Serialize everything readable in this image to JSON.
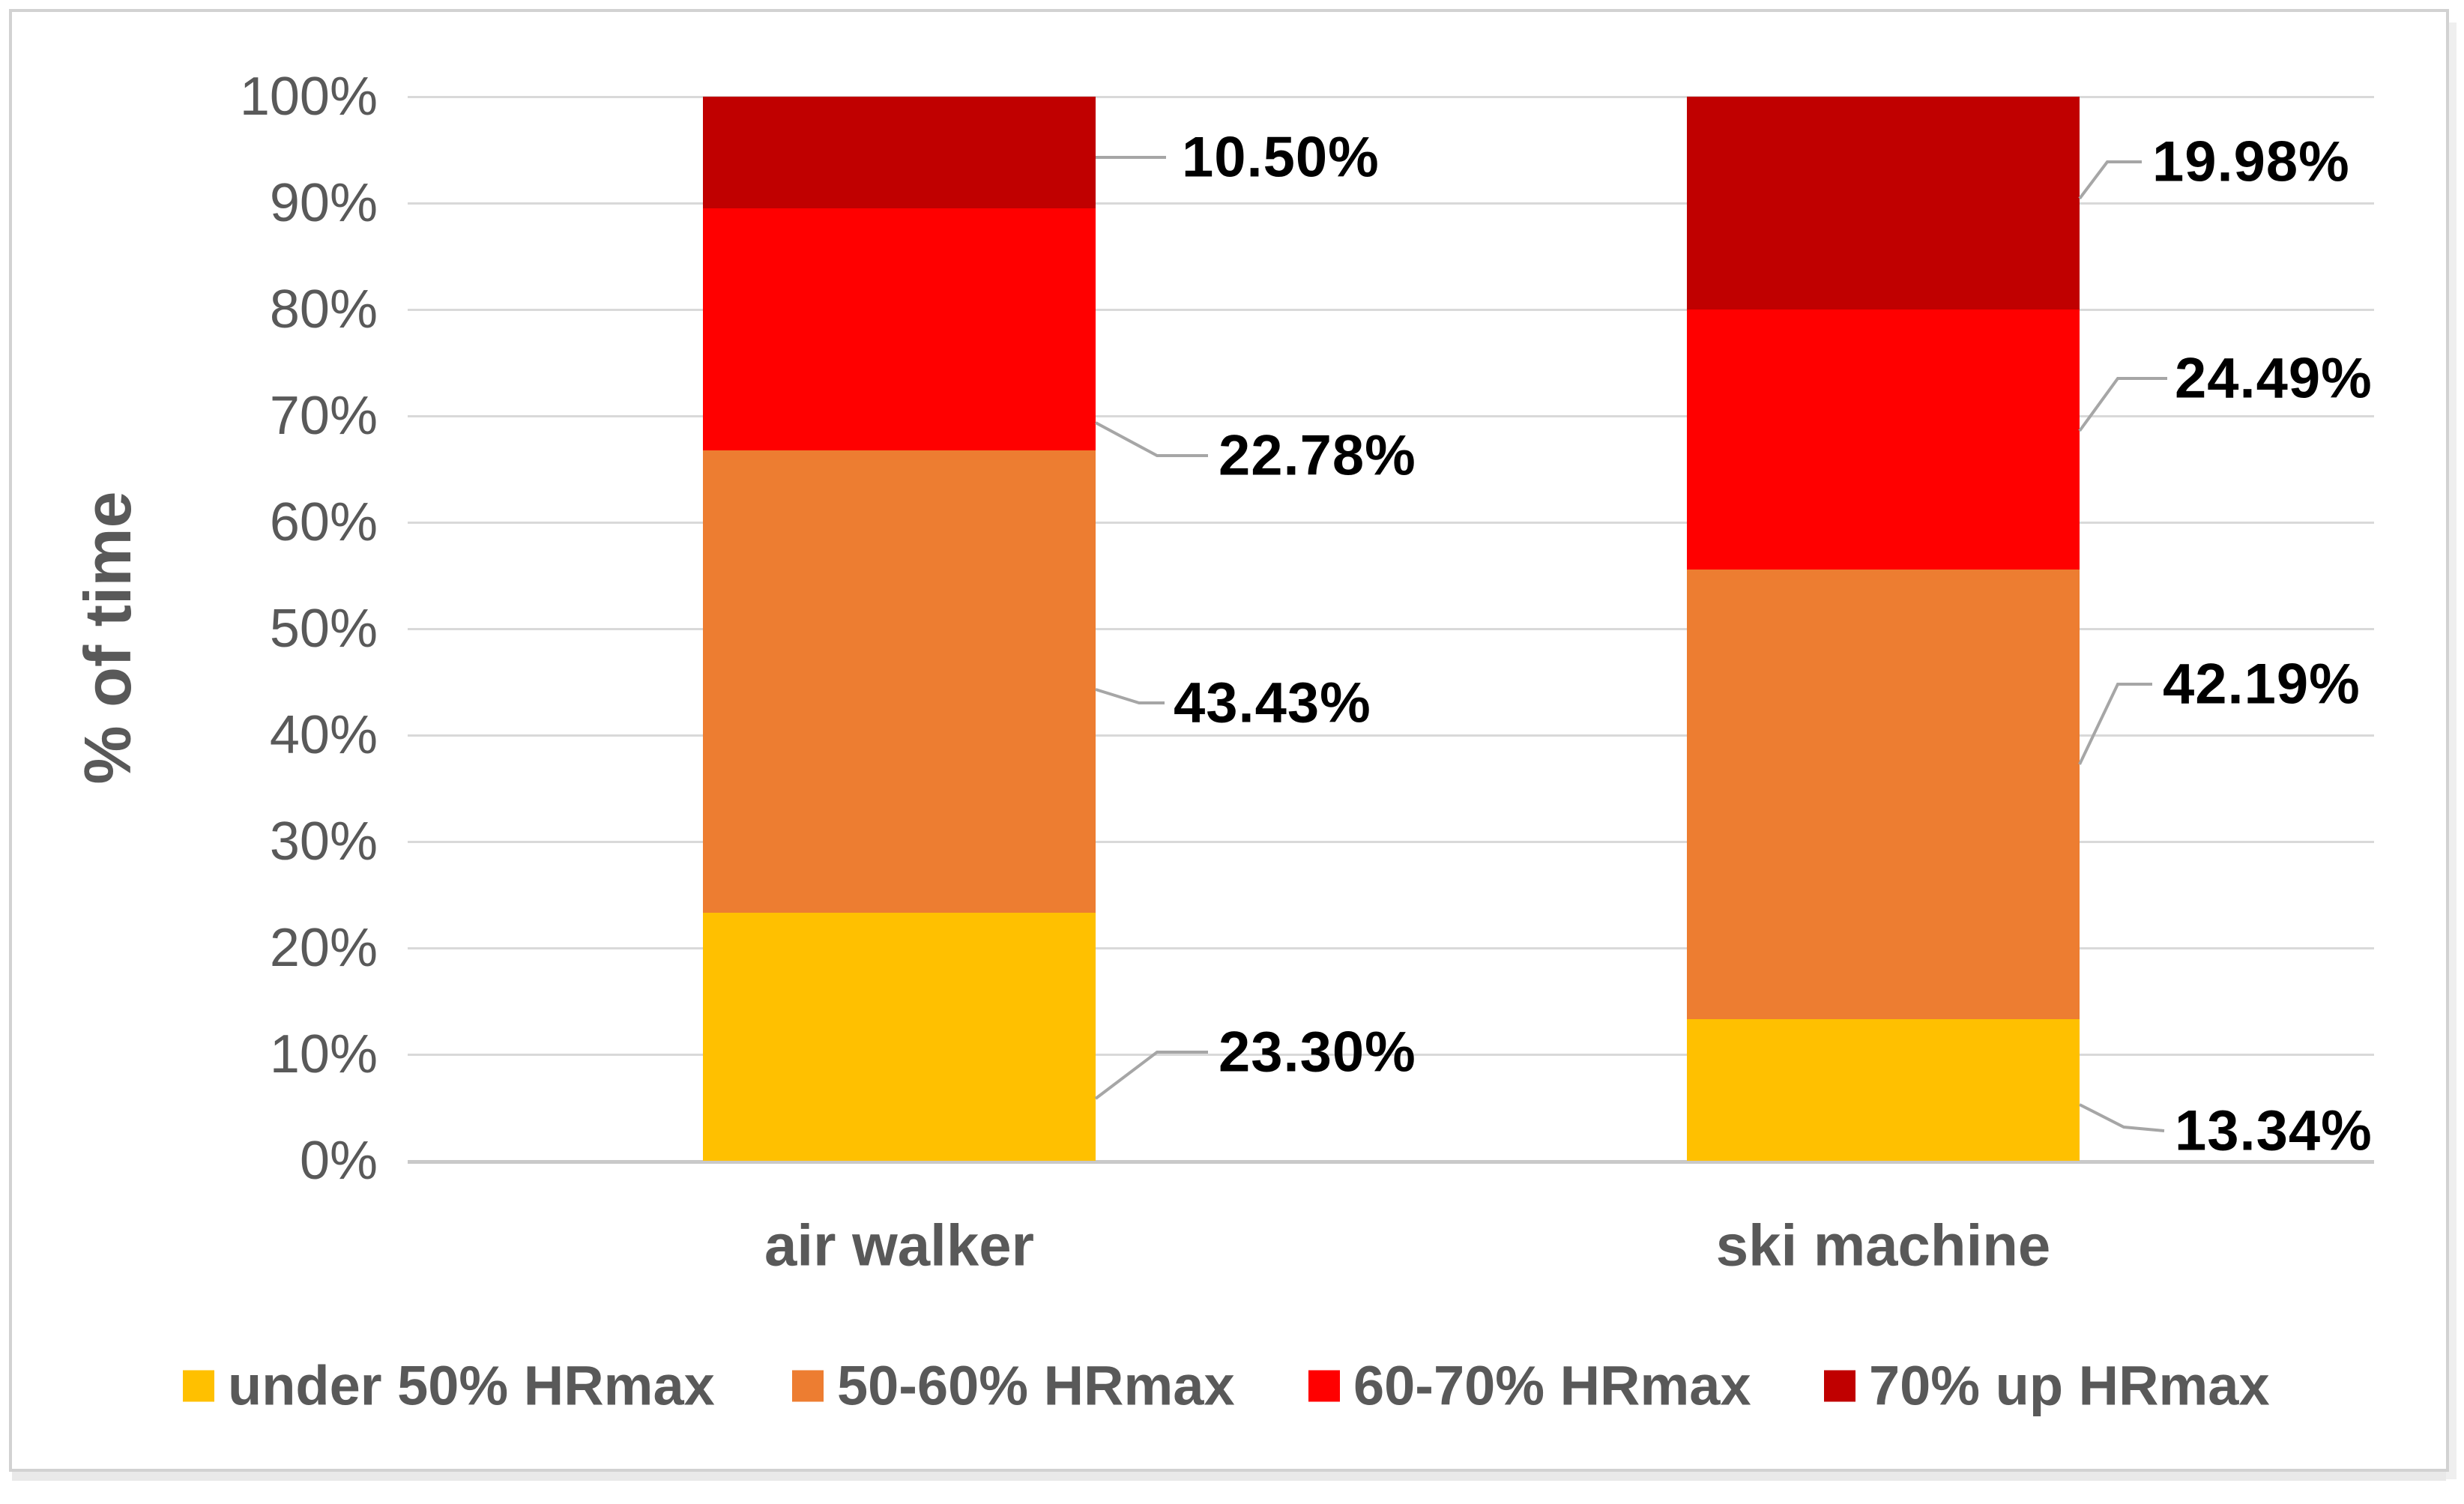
{
  "chart_data": {
    "type": "bar",
    "stacked": true,
    "orientation": "vertical",
    "title": "",
    "xlabel": "",
    "ylabel": "% of time",
    "ylim": [
      0,
      100
    ],
    "ytick_step": 10,
    "grid": true,
    "legend_position": "bottom",
    "categories": [
      "air walker",
      "ski machine"
    ],
    "yticks": [
      "0%",
      "10%",
      "20%",
      "30%",
      "40%",
      "50%",
      "60%",
      "70%",
      "80%",
      "90%",
      "100%"
    ],
    "series": [
      {
        "name": "under 50% HRmax",
        "color": "#FFC000",
        "values": [
          23.3,
          13.34
        ],
        "labels": [
          "23.30%",
          "13.34%"
        ]
      },
      {
        "name": "50-60% HRmax",
        "color": "#ED7D31",
        "values": [
          43.43,
          42.19
        ],
        "labels": [
          "43.43%",
          "42.19%"
        ]
      },
      {
        "name": "60-70% HRmax",
        "color": "#FF0000",
        "values": [
          22.78,
          24.49
        ],
        "labels": [
          "22.78%",
          "24.49%"
        ]
      },
      {
        "name": "70% up HRmax",
        "color": "#C00000",
        "values": [
          10.5,
          19.98
        ],
        "labels": [
          "10.50%",
          "19.98%"
        ]
      }
    ]
  },
  "colors": {
    "grid": "#D9D9D9",
    "baseline": "#C9C9C9",
    "axis_text": "#595959",
    "data_label_text": "#000000",
    "leader_line": "#A6A6A6",
    "canvas_border": "#D2D2D2",
    "background": "#FFFFFF"
  }
}
